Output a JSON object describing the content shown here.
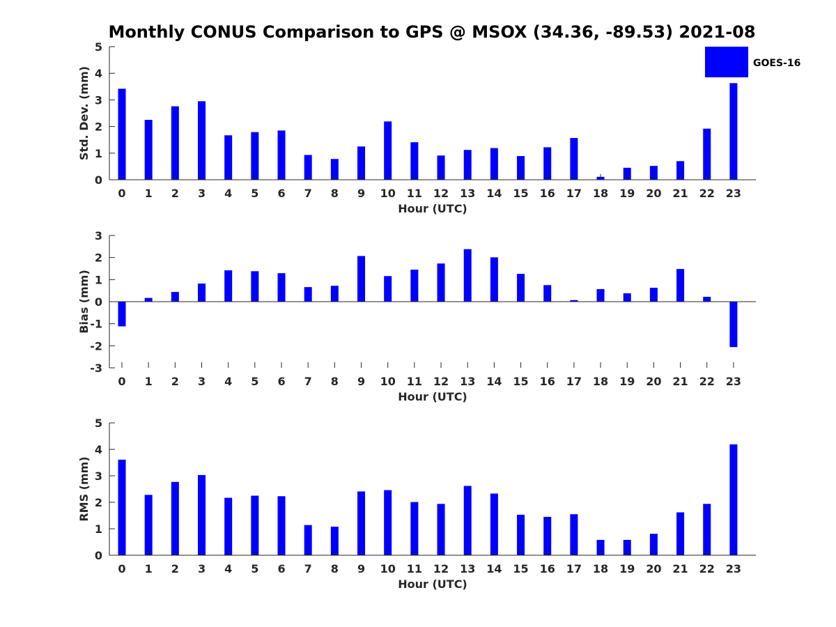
{
  "title": "Monthly CONUS Comparison to GPS @ MSOX (34.36, -89.53) 2021-08",
  "legend": {
    "label": "GOES-16",
    "color": "#0000ff",
    "placement": "top-right"
  },
  "colors": {
    "bar": "#0000ff",
    "axis": "#262626"
  },
  "chart_data": [
    {
      "type": "bar",
      "xlabel": "Hour (UTC)",
      "ylabel": "Std. Dev. (mm)",
      "ylim": [
        0,
        5
      ],
      "yticks": [
        0,
        1,
        2,
        3,
        4,
        5
      ],
      "categories": [
        "0",
        "1",
        "2",
        "3",
        "4",
        "5",
        "6",
        "7",
        "8",
        "9",
        "10",
        "11",
        "12",
        "13",
        "14",
        "15",
        "16",
        "17",
        "18",
        "19",
        "20",
        "21",
        "22",
        "23"
      ],
      "series": [
        {
          "name": "GOES-16",
          "values": [
            3.42,
            2.25,
            2.76,
            2.95,
            1.67,
            1.79,
            1.85,
            0.93,
            0.78,
            1.25,
            2.19,
            1.41,
            0.91,
            1.12,
            1.19,
            0.89,
            1.22,
            1.57,
            0.11,
            0.45,
            0.52,
            0.7,
            1.92,
            3.63
          ]
        }
      ]
    },
    {
      "type": "bar",
      "xlabel": "Hour (UTC)",
      "ylabel": "Bias (mm)",
      "ylim": [
        -3,
        3
      ],
      "yticks": [
        -3,
        -2,
        -1,
        0,
        1,
        2,
        3
      ],
      "categories": [
        "0",
        "1",
        "2",
        "3",
        "4",
        "5",
        "6",
        "7",
        "8",
        "9",
        "10",
        "11",
        "12",
        "13",
        "14",
        "15",
        "16",
        "17",
        "18",
        "19",
        "20",
        "21",
        "22",
        "23"
      ],
      "series": [
        {
          "name": "GOES-16",
          "values": [
            -1.12,
            0.17,
            0.44,
            0.82,
            1.42,
            1.38,
            1.29,
            0.66,
            0.72,
            2.07,
            1.16,
            1.45,
            1.73,
            2.38,
            2.01,
            1.26,
            0.75,
            0.07,
            0.57,
            0.38,
            0.63,
            1.48,
            0.22,
            -2.06
          ]
        }
      ]
    },
    {
      "type": "bar",
      "xlabel": "Hour (UTC)",
      "ylabel": "RMS (mm)",
      "ylim": [
        0,
        5
      ],
      "yticks": [
        0,
        1,
        2,
        3,
        4,
        5
      ],
      "categories": [
        "0",
        "1",
        "2",
        "3",
        "4",
        "5",
        "6",
        "7",
        "8",
        "9",
        "10",
        "11",
        "12",
        "13",
        "14",
        "15",
        "16",
        "17",
        "18",
        "19",
        "20",
        "21",
        "22",
        "23"
      ],
      "series": [
        {
          "name": "GOES-16",
          "values": [
            3.61,
            2.28,
            2.77,
            3.03,
            2.17,
            2.25,
            2.23,
            1.14,
            1.08,
            2.41,
            2.46,
            2.01,
            1.94,
            2.62,
            2.33,
            1.53,
            1.45,
            1.55,
            0.58,
            0.58,
            0.81,
            1.62,
            1.94,
            4.19
          ]
        }
      ]
    }
  ]
}
